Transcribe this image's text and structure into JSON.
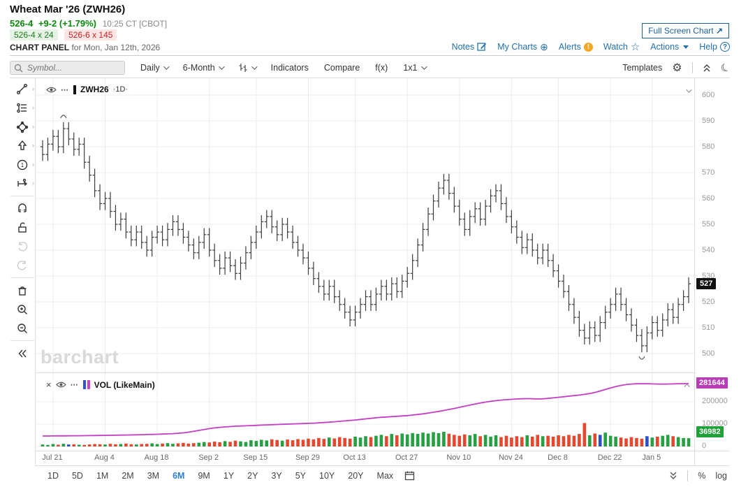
{
  "header": {
    "title": "Wheat Mar '26 (ZWH26)",
    "last": "526-4",
    "change": "+9-2 (+1.79%)",
    "time": "10:25 CT [CBOT]",
    "bid": "526-4 x 24",
    "ask": "526-6 x 145",
    "panel_label": "CHART PANEL",
    "panel_date": "for Mon, Jan 12th, 2026",
    "fullscreen_label": "Full Screen Chart",
    "links": [
      "Notes",
      "My Charts",
      "Alerts",
      "Watch",
      "Actions",
      "Help"
    ]
  },
  "toolbar": {
    "symbol_placeholder": "Symbol...",
    "period_label": "Daily",
    "range_label": "6-Month",
    "indicators_label": "Indicators",
    "compare_label": "Compare",
    "fx_label": "f(x)",
    "grid_label": "1x1",
    "templates_label": "Templates"
  },
  "sidebar_tools": [
    "trendline",
    "fibonacci",
    "shapes",
    "arrow",
    "annotation-number",
    "measure",
    "magnet",
    "unlock",
    "undo",
    "redo",
    "delete",
    "zoom-in",
    "zoom-out",
    "collapse"
  ],
  "price_pane": {
    "legend_symbol": "ZWH26",
    "legend_interval": "·1D·",
    "watermark": "barchart",
    "last_price_label": "527"
  },
  "volume_pane": {
    "legend": "VOL (LikeMain)",
    "oi_label": "281644",
    "vol_label": "36982",
    "zero_label": "0"
  },
  "bottom_bar": {
    "ranges": [
      "1D",
      "5D",
      "1M",
      "2M",
      "3M",
      "6M",
      "9M",
      "1Y",
      "2Y",
      "3Y",
      "5Y",
      "10Y",
      "20Y",
      "Max"
    ],
    "active_range": "6M",
    "percent_label": "%",
    "log_label": "log"
  },
  "colors": {
    "link_blue": "#2470ad",
    "active_blue": "#2e7fd0",
    "up_green": "#26a042",
    "down_red": "#e4492f",
    "special_blue": "#2d50c8",
    "oi_line": "#c53dc5",
    "bar_stroke": "#3c3c3c",
    "grid": "#ececec",
    "price_badge_bg": "#111111",
    "oi_badge_bg": "#b93db9",
    "vol_badge_bg": "#1fa138"
  },
  "chart_data": {
    "type": "ohlc+volume",
    "symbol": "ZWH26",
    "interval": "1D",
    "title": "Wheat Mar '26 daily OHLC with volume and open interest",
    "y_ticks": [
      600,
      590,
      580,
      570,
      560,
      550,
      540,
      530,
      520,
      510,
      500
    ],
    "ylim": [
      497,
      606
    ],
    "last_price": 527,
    "current_volume": 36982,
    "current_open_interest": 281644,
    "vol_axis_ticks": [
      0,
      100000,
      200000
    ],
    "date_ticks": [
      {
        "label": "Jul 21",
        "index": 2
      },
      {
        "label": "Aug 4",
        "index": 12
      },
      {
        "label": "Aug 18",
        "index": 22
      },
      {
        "label": "Sep 2",
        "index": 32
      },
      {
        "label": "Sep 15",
        "index": 41
      },
      {
        "label": "Sep 29",
        "index": 51
      },
      {
        "label": "Oct 13",
        "index": 60
      },
      {
        "label": "Oct 27",
        "index": 70
      },
      {
        "label": "Nov 10",
        "index": 80
      },
      {
        "label": "Nov 24",
        "index": 90
      },
      {
        "label": "Dec 8",
        "index": 99
      },
      {
        "label": "Dec 22",
        "index": 109
      },
      {
        "label": "Jan 5",
        "index": 117
      }
    ],
    "closes": [
      577,
      581,
      584,
      580,
      587,
      583,
      579,
      581,
      574,
      569,
      563,
      558,
      560,
      555,
      550,
      552,
      547,
      544,
      547,
      543,
      540,
      545,
      547,
      544,
      548,
      551,
      548,
      545,
      542,
      539,
      543,
      546,
      540,
      536,
      533,
      537,
      534,
      531,
      535,
      539,
      543,
      547,
      551,
      553,
      549,
      546,
      550,
      547,
      543,
      540,
      537,
      533,
      529,
      526,
      523,
      526,
      522,
      519,
      516,
      513,
      516,
      519,
      522,
      519,
      523,
      526,
      523,
      527,
      524,
      528,
      531,
      536,
      542,
      548,
      554,
      559,
      564,
      567,
      562,
      557,
      552,
      548,
      553,
      556,
      552,
      557,
      561,
      563,
      558,
      553,
      549,
      545,
      541,
      544,
      540,
      537,
      540,
      536,
      532,
      528,
      524,
      519,
      514,
      509,
      506,
      510,
      507,
      512,
      516,
      519,
      523,
      519,
      515,
      511,
      507,
      503,
      508,
      512,
      509,
      513,
      517,
      514,
      519,
      522,
      527
    ],
    "volumes": [
      9000,
      7000,
      11000,
      8000,
      12000,
      9000,
      10000,
      8000,
      7000,
      9000,
      11000,
      10000,
      9000,
      12000,
      10000,
      11000,
      13000,
      10000,
      9000,
      11000,
      12000,
      14000,
      11000,
      13000,
      15000,
      12000,
      14000,
      16000,
      13000,
      15000,
      17000,
      20000,
      18000,
      22000,
      19000,
      24000,
      21000,
      26000,
      23000,
      20000,
      28000,
      25000,
      30000,
      27000,
      32000,
      29000,
      26000,
      31000,
      28000,
      33000,
      30000,
      35000,
      32000,
      38000,
      34000,
      40000,
      36000,
      42000,
      38000,
      35000,
      44000,
      40000,
      46000,
      42000,
      48000,
      52000,
      46000,
      56000,
      50000,
      58000,
      54000,
      60000,
      56000,
      62000,
      58000,
      64000,
      60000,
      66000,
      57000,
      52000,
      48000,
      54000,
      50000,
      56000,
      46000,
      52000,
      44000,
      50000,
      42000,
      48000,
      40000,
      46000,
      42000,
      50000,
      44000,
      52000,
      46000,
      48000,
      44000,
      50000,
      46000,
      52000,
      48000,
      56000,
      105000,
      50000,
      58000,
      52000,
      62000,
      48000,
      44000,
      40000,
      36000,
      42000,
      38000,
      35000,
      46000,
      40000,
      44000,
      48000,
      52000,
      46000,
      42000,
      38000,
      36982
    ],
    "volume_blue_indices": [
      5,
      107,
      116
    ],
    "open_interest": [
      47000,
      47000,
      47200,
      47400,
      47600,
      47800,
      48000,
      48200,
      48500,
      48800,
      49000,
      49300,
      49600,
      50000,
      50400,
      50800,
      51200,
      51700,
      52200,
      52800,
      53400,
      54000,
      54800,
      55600,
      56500,
      57500,
      59000,
      61000,
      64000,
      68000,
      72000,
      76000,
      80000,
      83000,
      85500,
      87500,
      89000,
      90500,
      91500,
      92500,
      93500,
      94500,
      95500,
      96500,
      97500,
      98500,
      99300,
      100000,
      100800,
      101600,
      102500,
      103500,
      104500,
      105800,
      107200,
      108800,
      110500,
      112500,
      114500,
      116500,
      118500,
      121000,
      123500,
      126000,
      128500,
      130500,
      132000,
      133500,
      135000,
      136500,
      138000,
      140500,
      143000,
      146000,
      149500,
      153000,
      157000,
      161000,
      165500,
      170000,
      175000,
      180000,
      185000,
      190000,
      194500,
      198500,
      202000,
      205000,
      207500,
      209500,
      211000,
      212500,
      213500,
      214000,
      213500,
      212500,
      213000,
      215000,
      217500,
      220000,
      222500,
      225000,
      227500,
      230000,
      233000,
      237000,
      242000,
      248000,
      255000,
      262000,
      268000,
      273000,
      277000,
      279500,
      280500,
      281000,
      280500,
      280000,
      279500,
      279000,
      279500,
      280000,
      280500,
      281000,
      281644
    ],
    "pattern_markers": [
      {
        "index": 4,
        "position": "above"
      },
      {
        "index": 115,
        "position": "below"
      }
    ],
    "legend_position": "top-left",
    "grid": true
  }
}
